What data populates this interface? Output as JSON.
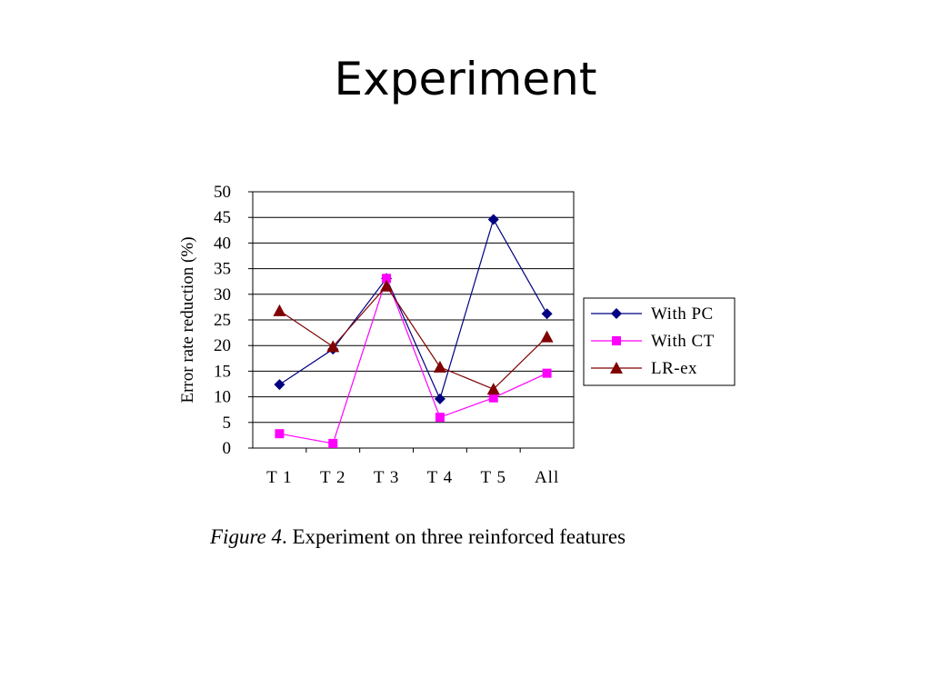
{
  "slide": {
    "title": "Experiment"
  },
  "caption": {
    "label": "Figure 4",
    "text": ". Experiment on three reinforced features"
  },
  "chart_data": {
    "type": "line",
    "title": "",
    "xlabel": "",
    "ylabel": "Error rate reduction (%)",
    "categories": [
      "T1",
      "T2",
      "T3",
      "T4",
      "T5",
      "All"
    ],
    "ylim": [
      0,
      50
    ],
    "yticks": [
      0,
      5,
      10,
      15,
      20,
      25,
      30,
      35,
      40,
      45,
      50
    ],
    "grid": true,
    "legend_position": "right",
    "series": [
      {
        "name": "With PC",
        "marker": "diamond",
        "color": "#000080",
        "values": [
          12.4,
          19.3,
          33.1,
          9.6,
          44.6,
          26.2
        ]
      },
      {
        "name": "With CT",
        "marker": "square",
        "color": "#FF00FF",
        "values": [
          2.8,
          0.9,
          33.1,
          6.0,
          9.8,
          14.6
        ]
      },
      {
        "name": "LR-ex",
        "marker": "triangle",
        "color": "#800000",
        "values": [
          26.8,
          19.8,
          31.6,
          15.8,
          11.5,
          21.7
        ]
      }
    ]
  }
}
